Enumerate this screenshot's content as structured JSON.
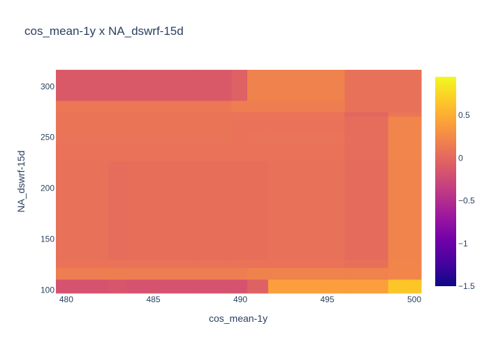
{
  "chart_data": {
    "type": "heatmap",
    "title": "cos_mean-1y x NA_dswrf-15d",
    "xlabel": "cos_mean-1y",
    "ylabel": "NA_dswrf-15d",
    "xlim": [
      479.4,
      500.4
    ],
    "ylim": [
      96.8,
      316.3
    ],
    "xticks": [
      480,
      485,
      490,
      495,
      500
    ],
    "yticks": [
      100,
      150,
      200,
      250,
      300
    ],
    "x_edges": [
      479.4,
      482.4,
      483.5,
      487.3,
      489.5,
      490.4,
      491.6,
      496.0,
      498.5,
      500.4
    ],
    "y_edges": [
      96.8,
      110.4,
      121.8,
      130.0,
      227.0,
      244.0,
      253.1,
      270.7,
      274.8,
      286.1,
      316.3
    ],
    "z": [
      [
        -0.17,
        -0.15,
        -0.17,
        -0.17,
        -0.17,
        -0.06,
        0.4,
        0.4,
        0.65
      ],
      [
        0.16,
        0.16,
        0.16,
        0.16,
        0.16,
        0.2,
        0.2,
        0.2,
        0.23
      ],
      [
        0.08,
        0.08,
        0.08,
        0.08,
        0.08,
        0.08,
        0.08,
        0.06,
        0.22
      ],
      [
        0.07,
        0.04,
        0.05,
        0.05,
        0.05,
        0.05,
        0.07,
        0.03,
        0.21
      ],
      [
        0.08,
        0.08,
        0.08,
        0.08,
        0.08,
        0.08,
        0.08,
        0.04,
        0.22
      ],
      [
        0.09,
        0.09,
        0.09,
        0.09,
        0.08,
        0.09,
        0.09,
        0.04,
        0.22
      ],
      [
        0.1,
        0.1,
        0.1,
        0.1,
        0.08,
        0.08,
        0.08,
        0.04,
        0.22
      ],
      [
        0.1,
        0.1,
        0.1,
        0.1,
        0.08,
        0.08,
        0.08,
        -0.02,
        0.11
      ],
      [
        0.12,
        0.12,
        0.12,
        0.12,
        0.16,
        0.16,
        0.16,
        0.07,
        0.07
      ],
      [
        -0.12,
        -0.12,
        -0.12,
        -0.12,
        -0.06,
        0.2,
        0.2,
        0.07,
        0.07
      ]
    ],
    "colorscale_range": [
      -1.5,
      0.95
    ],
    "colorbar_ticks": [
      0.5,
      0,
      -0.5,
      -1,
      -1.5
    ],
    "colorbar_tick_labels": [
      "0.5",
      "0",
      "−0.5",
      "−1",
      "−1.5"
    ],
    "colorscale": [
      "#0d0887",
      "#46039f",
      "#7201a8",
      "#9c179e",
      "#bd3786",
      "#d8576b",
      "#ed7953",
      "#fb9f3a",
      "#fdca26",
      "#f0f921"
    ],
    "grid": false,
    "legend": "colorbar-right"
  }
}
